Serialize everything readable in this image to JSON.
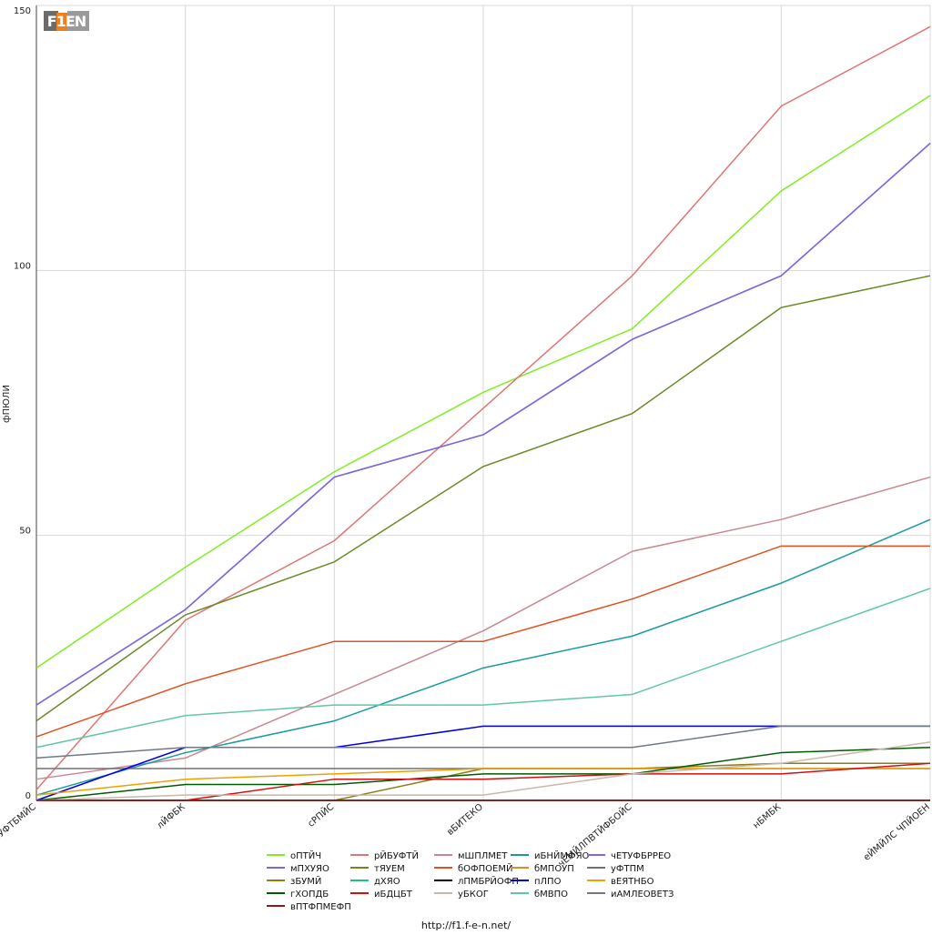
{
  "logo": {
    "text": "F1EN"
  },
  "footer": {
    "url": "http://f1.f-e-n.net/"
  },
  "chart_data": {
    "type": "line",
    "ylabel": "фПЮЛИ",
    "ylim": [
      0,
      150
    ],
    "yticks": [
      0,
      50,
      100,
      150
    ],
    "grid": true,
    "legend_position": "bottom",
    "categories": [
      "бЧУФТБМЙС",
      "лЙФБК",
      "сРПЙС",
      "вБИТЕКО",
      "чЕМЙЛПВТЙФБОЙС",
      "нБМБК",
      "еЙМЙЛС ЧПЙОЕН"
    ],
    "series": [
      {
        "name": "оПТЙЧ",
        "color": "#80ee1f",
        "values": [
          25,
          44,
          62,
          77,
          89,
          115,
          133
        ]
      },
      {
        "name": "рЙБУФТЙ",
        "color": "#e07575",
        "values": [
          2,
          34,
          49,
          74,
          99,
          131,
          146
        ]
      },
      {
        "name": "мШПЛМЕТ",
        "color": "#c98890",
        "values": [
          4,
          8,
          20,
          32,
          47,
          53,
          61
        ]
      },
      {
        "name": "иБНЙМФЯО",
        "color": "#1a9ba0",
        "values": [
          1,
          9,
          15,
          25,
          31,
          41,
          53
        ]
      },
      {
        "name": "чЕТУФБРРЕО",
        "color": "#7b68ee",
        "values": [
          18,
          36,
          61,
          69,
          87,
          99,
          124
        ]
      },
      {
        "name": "мПХУЯО",
        "color": "#7a67e0",
        "values": [
          18,
          36,
          61,
          69,
          87,
          99,
          124
        ]
      },
      {
        "name": "тЯУЕМ",
        "color": "#6a8a24",
        "values": [
          15,
          35,
          45,
          63,
          73,
          93,
          99
        ]
      },
      {
        "name": "бОФПОЕМЙ",
        "color": "#e05020",
        "values": [
          12,
          22,
          30,
          30,
          38,
          48,
          48
        ]
      },
      {
        "name": "бМПОУП",
        "color": "#e08a2a",
        "values": [
          0,
          0,
          0,
          0,
          0,
          0,
          0
        ]
      },
      {
        "name": "уФТПМ",
        "color": "#707070",
        "values": [
          6,
          6,
          6,
          6,
          6,
          6,
          6
        ]
      },
      {
        "name": "зБУМЙ",
        "color": "#8b7d1a",
        "values": [
          0,
          0,
          0,
          6,
          6,
          7,
          7
        ]
      },
      {
        "name": "дХЯО",
        "color": "#20c080",
        "values": [
          0,
          0,
          0,
          0,
          0,
          0,
          0
        ]
      },
      {
        "name": "лПМБРЙОФП",
        "color": "#000000",
        "values": [
          0,
          0,
          0,
          0,
          0,
          0,
          0
        ]
      },
      {
        "name": "пЛПО",
        "color": "#0000dd",
        "values": [
          0,
          10,
          10,
          14,
          14,
          14,
          14
        ]
      },
      {
        "name": "вЕЯТНБО",
        "color": "#f0a000",
        "values": [
          1,
          4,
          5,
          6,
          6,
          6,
          6
        ]
      },
      {
        "name": "гХОПДБ",
        "color": "#005a00",
        "values": [
          0,
          3,
          3,
          5,
          5,
          9,
          10
        ]
      },
      {
        "name": "иБДЦБТ",
        "color": "#d01010",
        "values": [
          0,
          0,
          4,
          4,
          5,
          5,
          7
        ]
      },
      {
        "name": "уБКОГ",
        "color": "#c8b8a8",
        "values": [
          0,
          1,
          1,
          1,
          5,
          7,
          11
        ]
      },
      {
        "name": "бМВПО",
        "color": "#60c8a0",
        "values": [
          10,
          16,
          18,
          18,
          20,
          30,
          40
        ]
      },
      {
        "name": "иАМЛЕОВЕТЗ",
        "color": "#707888",
        "values": [
          8,
          10,
          10,
          10,
          10,
          14,
          14
        ]
      },
      {
        "name": "вПТФПМЕФП",
        "color": "#8b1a1a",
        "values": [
          0,
          0,
          0,
          0,
          0,
          0,
          0
        ]
      }
    ],
    "legend_order": [
      [
        "оПТЙЧ",
        "рЙБУФТЙ",
        "мШПЛМЕТ",
        "иБНЙМФЯО",
        "чЕТУФБРРЕО"
      ],
      [
        "мПХУЯО",
        "тЯУЕМ",
        "бОФПОЕМЙ",
        "бМПОУП",
        "уФТПМ"
      ],
      [
        "зБУМЙ",
        "дХЯО",
        "лПМБРЙОФП",
        "пЛПО",
        "вЕЯТНБО"
      ],
      [
        "гХОПДБ",
        "иБДЦБТ",
        "уБКОГ",
        "бМВПО",
        "иАМЛЕОВЕТЗ"
      ],
      [
        "вПТФПМЕФП"
      ]
    ]
  }
}
